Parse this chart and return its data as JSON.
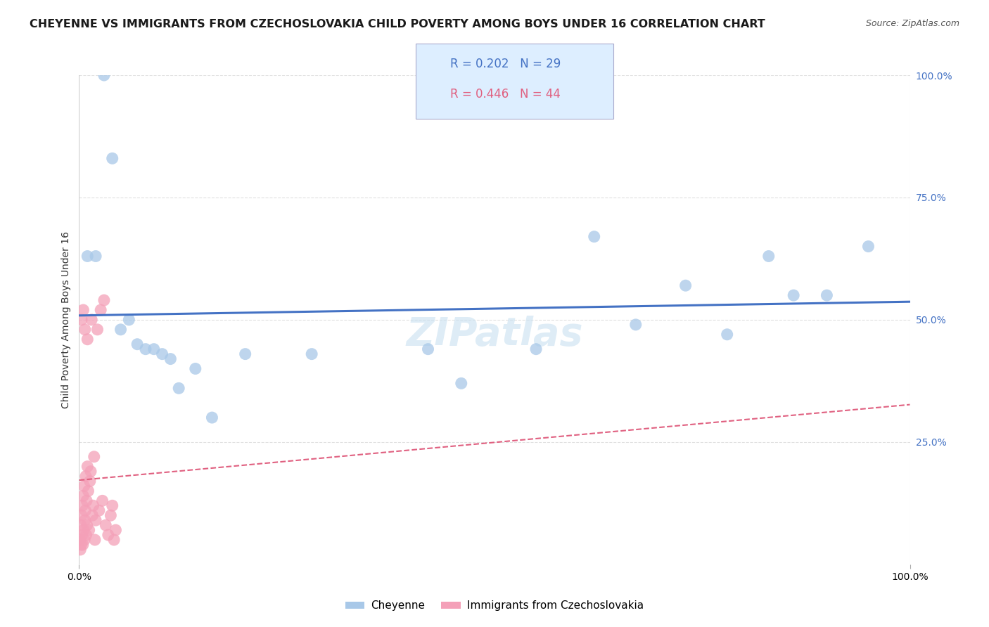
{
  "title": "CHEYENNE VS IMMIGRANTS FROM CZECHOSLOVAKIA CHILD POVERTY AMONG BOYS UNDER 16 CORRELATION CHART",
  "source": "Source: ZipAtlas.com",
  "ylabel": "Child Poverty Among Boys Under 16",
  "watermark": "ZIPatlas",
  "cheyenne_R": 0.202,
  "cheyenne_N": 29,
  "czech_R": 0.446,
  "czech_N": 44,
  "cheyenne_color": "#a8c8e8",
  "czech_color": "#f4a0b8",
  "cheyenne_line_color": "#4472c4",
  "czech_line_color": "#e06080",
  "legend_box_color": "#ddeeff",
  "xlim": [
    0,
    100
  ],
  "ylim": [
    0,
    100
  ],
  "grid_color": "#e0e0e0",
  "background_color": "#ffffff",
  "title_fontsize": 11.5,
  "source_fontsize": 9,
  "ylabel_fontsize": 10,
  "legend_fontsize": 12,
  "tick_fontsize": 10,
  "watermark_fontsize": 40,
  "watermark_color": "#c8e0f0",
  "watermark_alpha": 0.6,
  "cheyenne_x": [
    1.0,
    2.0,
    3.0,
    2.5,
    4.0,
    5.0,
    5.5,
    6.0,
    7.0,
    8.0,
    9.0,
    10.0,
    11.0,
    12.0,
    14.0,
    16.0,
    20.0,
    28.0,
    42.0,
    46.0,
    55.0,
    62.0,
    67.0,
    73.0,
    78.0,
    83.0,
    86.0,
    90.0,
    95.0
  ],
  "cheyenne_y": [
    63.0,
    63.0,
    100.0,
    83.0,
    50.0,
    48.0,
    46.0,
    45.0,
    43.0,
    44.0,
    44.0,
    43.0,
    42.0,
    36.0,
    40.0,
    30.0,
    43.0,
    43.0,
    44.0,
    37.0,
    44.0,
    67.0,
    49.0,
    57.0,
    47.0,
    63.0,
    55.0,
    55.0,
    65.0
  ],
  "czech_x": [
    0.2,
    0.3,
    0.4,
    0.5,
    0.6,
    0.7,
    0.8,
    0.9,
    1.0,
    1.1,
    1.2,
    1.3,
    1.4,
    1.5,
    1.6,
    1.7,
    1.8,
    1.9,
    2.0,
    2.1,
    2.2,
    2.3,
    2.4,
    2.5,
    2.6,
    2.7,
    2.8,
    2.9,
    3.0,
    3.1,
    3.2,
    3.3,
    3.4,
    3.5,
    3.6,
    3.7,
    3.8,
    3.9,
    4.0,
    4.1,
    4.2,
    4.3,
    4.4,
    4.5
  ],
  "czech_y": [
    4.0,
    3.0,
    5.0,
    8.0,
    10.0,
    6.0,
    12.0,
    4.0,
    14.0,
    16.0,
    7.0,
    9.0,
    11.0,
    50.0,
    15.0,
    13.0,
    17.0,
    5.0,
    19.0,
    7.0,
    21.0,
    9.0,
    48.0,
    6.0,
    52.0,
    11.0,
    8.0,
    13.0,
    54.0,
    15.0,
    10.0,
    12.0,
    14.0,
    16.0,
    5.0,
    7.0,
    9.0,
    11.0,
    13.0,
    6.0,
    8.0,
    10.0,
    5.0,
    7.0
  ]
}
